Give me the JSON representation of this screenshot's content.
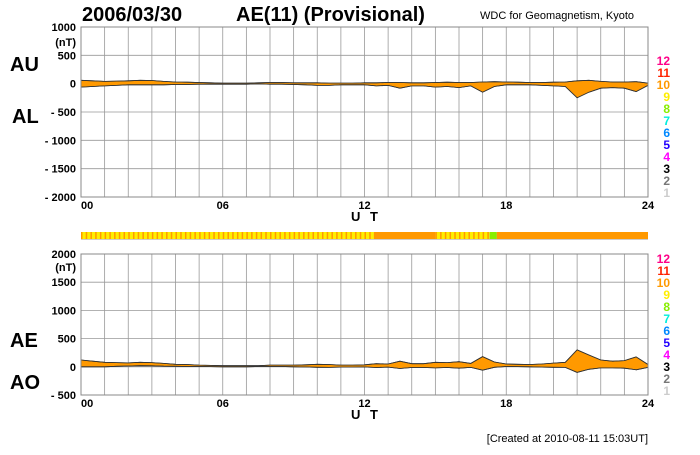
{
  "header": {
    "date": "2006/03/30",
    "title": "AE(11) (Provisional)",
    "source": "WDC for Geomagnetism, Kyoto"
  },
  "footer": "[Created at 2010-08-11 15:03UT]",
  "colors": {
    "fill": "#ff9900",
    "outline": "#333333",
    "grid": "#999999"
  },
  "chart_data": [
    {
      "type": "area",
      "title": "AU / AL",
      "labels": {
        "upper": "AU",
        "lower": "AL"
      },
      "unit": "(nT)",
      "xlabel": "U T",
      "xlim": [
        0,
        24
      ],
      "ylim": [
        -2000,
        1000
      ],
      "xticks": [
        "00",
        "06",
        "12",
        "18",
        "24"
      ],
      "yticks": [
        1000,
        500,
        0,
        -500,
        -1000,
        -1500,
        -2000
      ],
      "ytick_labels": [
        "1000",
        "500",
        "0",
        "- 500",
        "- 1000",
        "- 1500",
        "- 2000"
      ],
      "grid": true,
      "x_hours_step": 0.5,
      "AU": [
        60,
        50,
        40,
        45,
        50,
        60,
        55,
        40,
        30,
        25,
        20,
        15,
        10,
        10,
        10,
        15,
        20,
        20,
        15,
        15,
        15,
        10,
        10,
        10,
        15,
        15,
        20,
        20,
        15,
        15,
        20,
        25,
        20,
        20,
        30,
        35,
        30,
        25,
        20,
        20,
        25,
        30,
        50,
        60,
        40,
        30,
        30,
        35,
        10
      ],
      "AL": [
        -60,
        -50,
        -40,
        -30,
        -20,
        -20,
        -20,
        -20,
        -15,
        -15,
        -10,
        -10,
        -10,
        -10,
        -10,
        -5,
        -10,
        -10,
        -15,
        -20,
        -30,
        -30,
        -20,
        -20,
        -20,
        -40,
        -30,
        -80,
        -40,
        -40,
        -60,
        -50,
        -70,
        -40,
        -150,
        -50,
        -20,
        -20,
        -20,
        -30,
        -40,
        -50,
        -250,
        -150,
        -80,
        -70,
        -80,
        -140,
        -30
      ]
    },
    {
      "type": "area",
      "title": "AE / AO",
      "labels": {
        "upper": "AE",
        "lower": "AO"
      },
      "unit": "(nT)",
      "xlabel": "U T",
      "xlim": [
        0,
        24
      ],
      "ylim": [
        -500,
        2000
      ],
      "xticks": [
        "00",
        "06",
        "12",
        "18",
        "24"
      ],
      "yticks": [
        2000,
        1500,
        1000,
        500,
        0,
        -500
      ],
      "ytick_labels": [
        "2000",
        "1500",
        "1000",
        "500",
        "0",
        "- 500"
      ],
      "grid": true,
      "x_hours_step": 0.5,
      "AE": [
        120,
        100,
        80,
        75,
        70,
        80,
        75,
        60,
        45,
        40,
        30,
        25,
        20,
        20,
        20,
        20,
        30,
        30,
        30,
        35,
        45,
        40,
        30,
        30,
        35,
        55,
        50,
        100,
        55,
        55,
        80,
        75,
        90,
        60,
        180,
        85,
        50,
        45,
        40,
        50,
        65,
        80,
        300,
        210,
        120,
        100,
        110,
        175,
        40
      ],
      "AO": [
        0,
        0,
        0,
        8,
        15,
        20,
        18,
        10,
        8,
        5,
        5,
        3,
        0,
        0,
        0,
        5,
        5,
        5,
        0,
        -3,
        -8,
        -10,
        -5,
        -5,
        -3,
        -13,
        -5,
        -30,
        -13,
        -13,
        -20,
        -13,
        -25,
        -10,
        -60,
        -8,
        5,
        3,
        0,
        -5,
        -8,
        -10,
        -100,
        -45,
        -20,
        -20,
        -25,
        -53,
        -10
      ]
    }
  ],
  "station_count_bar": {
    "segments": [
      {
        "from": 0,
        "to": 12.4,
        "count": 9,
        "pattern": "striped"
      },
      {
        "from": 12.4,
        "to": 15.0,
        "count": 10
      },
      {
        "from": 15.0,
        "to": 17.3,
        "count": 9,
        "pattern": "striped"
      },
      {
        "from": 17.3,
        "to": 17.6,
        "count": 8
      },
      {
        "from": 17.6,
        "to": 24,
        "count": 10
      }
    ]
  },
  "legend": [
    {
      "label": "12",
      "color": "#ff0088"
    },
    {
      "label": "11",
      "color": "#ff2200"
    },
    {
      "label": "10",
      "color": "#ff9900"
    },
    {
      "label": "9",
      "color": "#ffee00"
    },
    {
      "label": "8",
      "color": "#88ee00"
    },
    {
      "label": "7",
      "color": "#00eedd"
    },
    {
      "label": "6",
      "color": "#0088ff"
    },
    {
      "label": "5",
      "color": "#2200ff"
    },
    {
      "label": "4",
      "color": "#ff00ff"
    },
    {
      "label": "3",
      "color": "#000000"
    },
    {
      "label": "2",
      "color": "#777777"
    },
    {
      "label": "1",
      "color": "#cccccc"
    }
  ]
}
